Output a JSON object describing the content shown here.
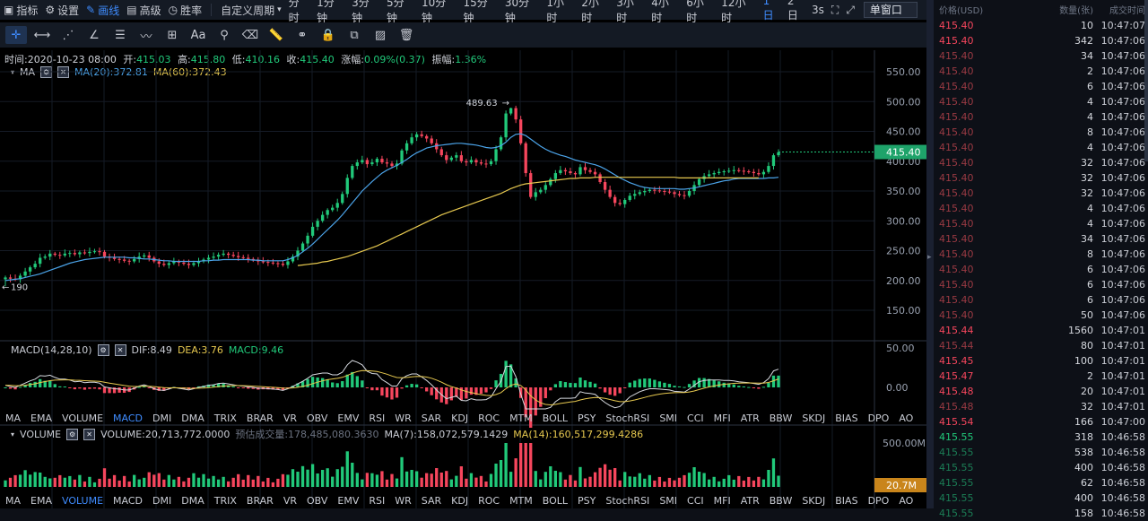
{
  "toolbar": {
    "indicators": "指标",
    "settings": "设置",
    "draw": "画线",
    "advanced": "高级",
    "winrate": "胜率",
    "custom_period": "自定义周期",
    "periods": [
      "分时",
      "1分钟",
      "3分钟",
      "5分钟",
      "10分钟",
      "15分钟",
      "30分钟",
      "1小时",
      "2小时",
      "3小时",
      "4小时",
      "6小时",
      "12小时",
      "1日",
      "2日"
    ],
    "active_period": "1日",
    "refresh": "3s",
    "window_mode": "单窗口"
  },
  "info": {
    "time_label": "时间:",
    "time": "2020-10-23 08:00",
    "open_label": "开:",
    "open": "415.03",
    "high_label": "高:",
    "high": "415.80",
    "low_label": "低:",
    "low": "410.16",
    "close_label": "收:",
    "close": "415.40",
    "change_label": "涨幅:",
    "change": "0.09%(0.37)",
    "amp_label": "振幅:",
    "amp": "1.36%"
  },
  "main_indicator": {
    "name": "MA",
    "ma20": "MA(20):372.81",
    "ma60": "MA(60):372.43"
  },
  "macd_indicator": {
    "name": "MACD(14,28,10)",
    "dif": "DIF:8.49",
    "dea": "DEA:3.76",
    "macd": "MACD:9.46"
  },
  "volume_indicator": {
    "name": "VOLUME",
    "volume": "VOLUME:20,713,772.0000",
    "estimate": "预估成交量:178,485,080.3630",
    "ma7": "MA(7):158,072,579.1429",
    "ma14": "MA(14):160,517,299.4286"
  },
  "indicator_tabs": [
    "MA",
    "EMA",
    "VOLUME",
    "MACD",
    "DMI",
    "DMA",
    "TRIX",
    "BRAR",
    "VR",
    "OBV",
    "EMV",
    "RSI",
    "WR",
    "SAR",
    "KDJ",
    "ROC",
    "MTM",
    "BOLL",
    "PSY",
    "StochRSI",
    "SMI",
    "CCI",
    "MFI",
    "ATR",
    "BBW",
    "SKDJ",
    "BIAS",
    "DPO",
    "AO"
  ],
  "indicator_tabs_active_1": "MACD",
  "indicator_tabs_active_2": "VOLUME",
  "price_axis": [
    "550.00",
    "500.00",
    "450.00",
    "400.00",
    "350.00",
    "300.00",
    "250.00",
    "200.00",
    "150.00"
  ],
  "last_price_tag": "415.40",
  "macd_axis": [
    "50.00",
    "0.00"
  ],
  "volume_axis": "500.00M",
  "volume_tag": "20.7M",
  "high_marker": "489.63",
  "low_marker": "190",
  "chart_data": {
    "type": "candlestick",
    "title": "",
    "ylim": [
      120,
      570
    ],
    "closes": [
      205,
      203,
      202,
      208,
      215,
      222,
      228,
      238,
      240,
      245,
      243,
      242,
      245,
      246,
      244,
      247,
      246,
      248,
      249,
      248,
      240,
      238,
      236,
      235,
      233,
      232,
      236,
      240,
      242,
      238,
      232,
      228,
      226,
      229,
      232,
      230,
      228,
      226,
      229,
      232,
      235,
      238,
      240,
      243,
      245,
      243,
      241,
      239,
      238,
      236,
      234,
      232,
      231,
      230,
      229,
      228,
      226,
      232,
      240,
      250,
      262,
      275,
      290,
      300,
      310,
      318,
      322,
      330,
      345,
      372,
      392,
      398,
      402,
      395,
      398,
      404,
      398,
      396,
      392,
      396,
      418,
      430,
      440,
      445,
      442,
      438,
      430,
      420,
      410,
      402,
      406,
      410,
      400,
      398,
      402,
      398,
      396,
      395,
      400,
      420,
      440,
      480,
      489,
      470,
      430,
      380,
      340,
      348,
      352,
      360,
      370,
      380,
      385,
      383,
      380,
      378,
      390,
      385,
      382,
      378,
      365,
      352,
      340,
      330,
      328,
      335,
      342,
      345,
      348,
      350,
      352,
      351,
      350,
      349,
      348,
      345,
      343,
      342,
      350,
      360,
      370,
      375,
      378,
      380,
      382,
      383,
      384,
      385,
      384,
      383,
      382,
      380,
      378,
      382,
      392,
      410,
      415
    ],
    "ma20": [
      200,
      201,
      202,
      203,
      205,
      207,
      209,
      211,
      214,
      217,
      220,
      223,
      226,
      229,
      231,
      233,
      235,
      236,
      237,
      238,
      239,
      239,
      239,
      239,
      239,
      238,
      238,
      237,
      236,
      236,
      235,
      234,
      233,
      233,
      232,
      232,
      232,
      232,
      232,
      232,
      233,
      233,
      234,
      234,
      235,
      235,
      235,
      235,
      235,
      235,
      234,
      234,
      233,
      233,
      233,
      233,
      233,
      235,
      238,
      242,
      248,
      254,
      261,
      269,
      277,
      285,
      293,
      301,
      310,
      320,
      330,
      340,
      350,
      358,
      366,
      373,
      380,
      385,
      389,
      393,
      398,
      403,
      409,
      414,
      418,
      422,
      424,
      426,
      427,
      428,
      429,
      430,
      430,
      429,
      428,
      427,
      425,
      423,
      422,
      423,
      426,
      432,
      440,
      445,
      446,
      443,
      437,
      431,
      425,
      420,
      416,
      413,
      410,
      408,
      405,
      402,
      400,
      398,
      396,
      394,
      391,
      387,
      382,
      377,
      372,
      368,
      364,
      361,
      358,
      356,
      355,
      354,
      354,
      354,
      354,
      354,
      353,
      353,
      354,
      355,
      357,
      359,
      361,
      363,
      365,
      367,
      368,
      370,
      371,
      371,
      371,
      371,
      371,
      371,
      372,
      372,
      373
    ],
    "ma60": [
      null,
      null,
      null,
      null,
      null,
      null,
      null,
      null,
      null,
      null,
      null,
      null,
      null,
      null,
      null,
      null,
      null,
      null,
      null,
      null,
      null,
      null,
      null,
      null,
      null,
      null,
      null,
      null,
      null,
      null,
      null,
      null,
      null,
      null,
      null,
      null,
      null,
      null,
      null,
      null,
      null,
      null,
      null,
      null,
      null,
      null,
      null,
      null,
      null,
      null,
      null,
      null,
      null,
      null,
      null,
      null,
      null,
      null,
      null,
      225,
      226,
      227,
      228,
      229,
      231,
      232,
      234,
      236,
      238,
      240,
      243,
      246,
      249,
      252,
      255,
      258,
      262,
      266,
      270,
      274,
      278,
      282,
      286,
      290,
      294,
      298,
      302,
      306,
      310,
      313,
      316,
      319,
      322,
      325,
      328,
      331,
      334,
      337,
      340,
      343,
      346,
      350,
      354,
      357,
      360,
      362,
      363,
      364,
      365,
      366,
      367,
      368,
      369,
      370,
      371,
      371,
      372,
      372,
      372,
      373,
      373,
      373,
      373,
      373,
      373,
      373,
      373,
      373,
      373,
      373,
      373,
      373,
      373,
      373,
      373,
      373,
      372,
      372,
      372,
      372,
      372,
      372,
      372,
      372,
      372,
      372,
      372,
      372,
      372,
      372,
      372,
      372,
      372
    ]
  },
  "orderbook": {
    "headers": [
      "价格(USD)",
      "数量(张)",
      "成交时间"
    ],
    "rows": [
      {
        "p": "415.40",
        "q": "10",
        "t": "10:47:07",
        "c": "#f6465d"
      },
      {
        "p": "415.40",
        "q": "342",
        "t": "10:47:06",
        "c": "#f6465d"
      },
      {
        "p": "415.40",
        "q": "34",
        "t": "10:47:06",
        "c": "#9a3a43"
      },
      {
        "p": "415.40",
        "q": "2",
        "t": "10:47:06",
        "c": "#9a3a43"
      },
      {
        "p": "415.40",
        "q": "6",
        "t": "10:47:06",
        "c": "#9a3a43"
      },
      {
        "p": "415.40",
        "q": "4",
        "t": "10:47:06",
        "c": "#9a3a43"
      },
      {
        "p": "415.40",
        "q": "4",
        "t": "10:47:06",
        "c": "#9a3a43"
      },
      {
        "p": "415.40",
        "q": "8",
        "t": "10:47:06",
        "c": "#9a3a43"
      },
      {
        "p": "415.40",
        "q": "4",
        "t": "10:47:06",
        "c": "#9a3a43"
      },
      {
        "p": "415.40",
        "q": "32",
        "t": "10:47:06",
        "c": "#9a3a43"
      },
      {
        "p": "415.40",
        "q": "32",
        "t": "10:47:06",
        "c": "#9a3a43"
      },
      {
        "p": "415.40",
        "q": "32",
        "t": "10:47:06",
        "c": "#9a3a43"
      },
      {
        "p": "415.40",
        "q": "4",
        "t": "10:47:06",
        "c": "#9a3a43"
      },
      {
        "p": "415.40",
        "q": "4",
        "t": "10:47:06",
        "c": "#9a3a43"
      },
      {
        "p": "415.40",
        "q": "34",
        "t": "10:47:06",
        "c": "#9a3a43"
      },
      {
        "p": "415.40",
        "q": "8",
        "t": "10:47:06",
        "c": "#9a3a43"
      },
      {
        "p": "415.40",
        "q": "6",
        "t": "10:47:06",
        "c": "#9a3a43"
      },
      {
        "p": "415.40",
        "q": "6",
        "t": "10:47:06",
        "c": "#9a3a43"
      },
      {
        "p": "415.40",
        "q": "6",
        "t": "10:47:06",
        "c": "#9a3a43"
      },
      {
        "p": "415.40",
        "q": "50",
        "t": "10:47:06",
        "c": "#9a3a43"
      },
      {
        "p": "415.44",
        "q": "1560",
        "t": "10:47:01",
        "c": "#f6465d"
      },
      {
        "p": "415.44",
        "q": "80",
        "t": "10:47:01",
        "c": "#9a3a43"
      },
      {
        "p": "415.45",
        "q": "100",
        "t": "10:47:01",
        "c": "#f6465d"
      },
      {
        "p": "415.47",
        "q": "2",
        "t": "10:47:01",
        "c": "#f6465d"
      },
      {
        "p": "415.48",
        "q": "20",
        "t": "10:47:01",
        "c": "#f6465d"
      },
      {
        "p": "415.48",
        "q": "32",
        "t": "10:47:01",
        "c": "#9a3a43"
      },
      {
        "p": "415.54",
        "q": "166",
        "t": "10:47:00",
        "c": "#f6465d"
      },
      {
        "p": "415.55",
        "q": "318",
        "t": "10:46:58",
        "c": "#21c97a"
      },
      {
        "p": "415.55",
        "q": "538",
        "t": "10:46:58",
        "c": "#1b7d55"
      },
      {
        "p": "415.55",
        "q": "400",
        "t": "10:46:58",
        "c": "#1b7d55"
      },
      {
        "p": "415.55",
        "q": "62",
        "t": "10:46:58",
        "c": "#1b7d55"
      },
      {
        "p": "415.55",
        "q": "400",
        "t": "10:46:58",
        "c": "#1b7d55"
      },
      {
        "p": "415.55",
        "q": "158",
        "t": "10:46:58",
        "c": "#1b7d55"
      }
    ]
  },
  "colors": {
    "up": "#21c97a",
    "down": "#f6465d",
    "ma20": "#4ba3e8",
    "ma60": "#e6c84f",
    "accent": "#3f8cff"
  }
}
